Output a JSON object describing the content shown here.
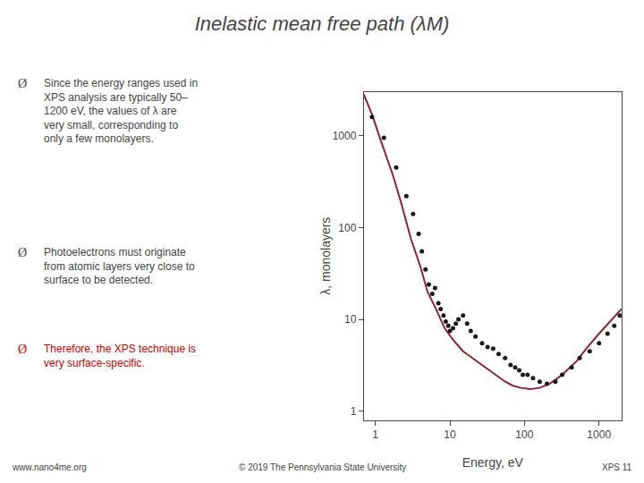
{
  "chart_data": {
    "type": "line",
    "title": "Inelastic mean free path (λM)",
    "x_label": "Energy, eV",
    "y_label": "λ, monolayers",
    "log": true,
    "grid": false,
    "xlim": [
      0.7,
      2000
    ],
    "ylim": [
      0.8,
      3000
    ],
    "xticks": [
      1,
      10,
      100,
      1000
    ],
    "yticks": [
      1,
      10,
      100,
      1000
    ],
    "series": [
      {
        "type": "line",
        "color": "#8B2535",
        "x": [
          0.7,
          0.9,
          1.2,
          1.7,
          2.2,
          3.0,
          4.0,
          5.0,
          6.5,
          8.5,
          11,
          15,
          20,
          30,
          40,
          55,
          70,
          90,
          120,
          160,
          220,
          320,
          500,
          700,
          1000,
          1400,
          2000
        ],
        "values": [
          2800,
          1700,
          850,
          380,
          190,
          75,
          38,
          20,
          13,
          8,
          6,
          4.5,
          3.8,
          3.0,
          2.5,
          2.1,
          1.9,
          1.8,
          1.75,
          1.8,
          2.0,
          2.5,
          3.5,
          5.0,
          7.0,
          9.5,
          13
        ]
      },
      {
        "type": "scatter",
        "color": "#1A1A1A",
        "x": [
          0.9,
          1.3,
          1.9,
          2.6,
          3.2,
          3.8,
          4.2,
          4.7,
          5.2,
          5.8,
          6.3,
          7.0,
          7.5,
          8.2,
          8.8,
          9.5,
          10,
          11,
          12,
          13,
          15,
          17,
          19,
          22,
          27,
          32,
          38,
          45,
          55,
          65,
          75,
          85,
          95,
          110,
          130,
          160,
          200,
          260,
          320,
          430,
          550,
          750,
          1000,
          1300,
          1600,
          1900
        ],
        "values": [
          1600,
          950,
          450,
          220,
          140,
          85,
          55,
          35,
          24,
          19,
          22,
          15,
          13,
          11,
          9.5,
          8.5,
          7.5,
          8,
          9,
          10,
          11,
          9,
          7.5,
          6.5,
          5.5,
          5,
          4.8,
          4.2,
          3.8,
          3.2,
          3,
          2.8,
          2.5,
          2.5,
          2.3,
          2.1,
          2.0,
          2.1,
          2.5,
          3.0,
          3.8,
          4.5,
          5.5,
          7,
          8.5,
          11
        ]
      }
    ],
    "annotations": [
      {
        "text": "Ø"
      },
      {
        "text": "Since the energy ranges used in\nXPS analysis are typically 50–\n1200 eV, the values of λ are\nvery small, corresponding to\nonly a few monolayers."
      },
      {
        "text": "Ø"
      },
      {
        "text": "Photoelectrons must originate\nfrom atomic layers very close to\nsurface to be detected."
      },
      {
        "text": "Ø",
        "color": "#CC0000"
      },
      {
        "text": "Therefore, the XPS technique is\nvery surface-specific.",
        "color": "#CC0000"
      },
      {
        "text": "www.nano4me.org"
      },
      {
        "text": "© 2019 The Pennsylvania State University"
      },
      {
        "text": "XPS 11"
      }
    ]
  }
}
